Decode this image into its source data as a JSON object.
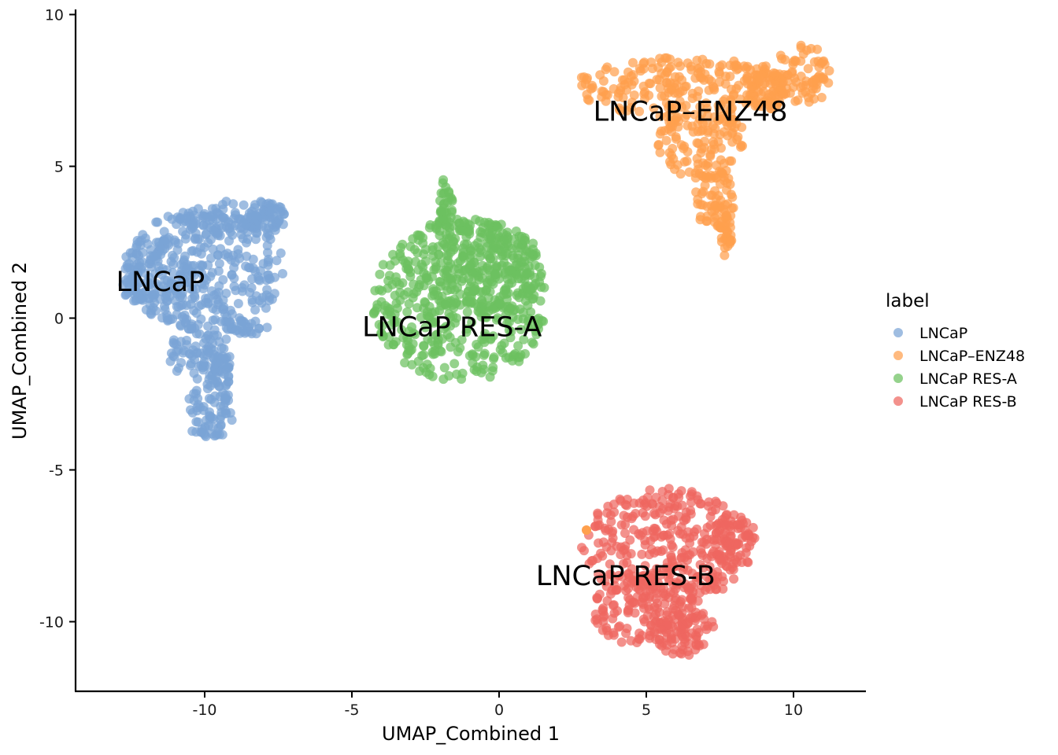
{
  "chart_data": {
    "type": "scatter",
    "title": "",
    "xlabel": "UMAP_Combined 1",
    "ylabel": "UMAP_Combined 2",
    "xlim": [
      -14.5,
      12.3
    ],
    "ylim": [
      -12.3,
      10.1
    ],
    "xticks": [
      -10,
      -5,
      0,
      5,
      10
    ],
    "yticks": [
      -10,
      -5,
      0,
      5,
      10
    ],
    "grid": false,
    "legend": {
      "title": "label",
      "position": "right"
    },
    "series": [
      {
        "name": "LNCaP",
        "color": "#7aa3d6",
        "label_text": "LNCaP",
        "label_position": [
          -11.5,
          0.9
        ],
        "regions": [
          {
            "cx": -10.0,
            "cy": 1.6,
            "rx": 2.7,
            "ry": 2.0
          },
          {
            "cx": -9.0,
            "cy": 3.3,
            "rx": 1.8,
            "ry": 0.6
          },
          {
            "cx": -7.9,
            "cy": 3.3,
            "rx": 0.7,
            "ry": 0.6
          },
          {
            "cx": -11.7,
            "cy": 1.4,
            "rx": 1.2,
            "ry": 1.2
          },
          {
            "cx": -10.2,
            "cy": -1.1,
            "rx": 1.1,
            "ry": 0.9
          },
          {
            "cx": -9.7,
            "cy": -1.8,
            "rx": 0.6,
            "ry": 0.8
          },
          {
            "cx": -9.8,
            "cy": -3.1,
            "rx": 0.9,
            "ry": 0.9
          },
          {
            "cx": -8.6,
            "cy": -0.3,
            "rx": 0.8,
            "ry": 0.25
          }
        ]
      },
      {
        "name": "LNCaP–ENZ48",
        "color": "#ffa04d",
        "label_text": "LNCaP–ENZ48",
        "label_position": [
          6.5,
          6.5
        ],
        "regions": [
          {
            "cx": 6.2,
            "cy": 7.6,
            "rx": 3.6,
            "ry": 1.0
          },
          {
            "cx": 6.9,
            "cy": 5.8,
            "rx": 1.5,
            "ry": 1.2
          },
          {
            "cx": 7.3,
            "cy": 3.9,
            "rx": 0.7,
            "ry": 1.0
          },
          {
            "cx": 7.7,
            "cy": 2.7,
            "rx": 0.2,
            "ry": 0.7
          },
          {
            "cx": 10.3,
            "cy": 8.0,
            "rx": 1.0,
            "ry": 1.0
          },
          {
            "cx": 9.0,
            "cy": 7.6,
            "rx": 0.7,
            "ry": 0.8
          }
        ]
      },
      {
        "name": "LNCaP RES-A",
        "color": "#6cc15f",
        "label_text": "LNCaP RES-A",
        "label_position": [
          -1.6,
          -0.6
        ],
        "regions": [
          {
            "cx": -1.3,
            "cy": 0.6,
            "rx": 3.0,
            "ry": 2.7
          },
          {
            "cx": -0.5,
            "cy": 1.6,
            "rx": 2.0,
            "ry": 1.6
          },
          {
            "cx": -1.8,
            "cy": 3.9,
            "rx": 0.25,
            "ry": 0.8
          }
        ]
      },
      {
        "name": "LNCaP RES-B",
        "color": "#ee6760",
        "label_text": "LNCaP RES-B",
        "label_position": [
          4.3,
          -8.8
        ],
        "regions": [
          {
            "cx": 5.7,
            "cy": -7.5,
            "rx": 2.9,
            "ry": 1.9
          },
          {
            "cx": 5.0,
            "cy": -9.6,
            "rx": 1.8,
            "ry": 1.3
          },
          {
            "cx": 6.2,
            "cy": -10.3,
            "rx": 1.1,
            "ry": 0.9
          },
          {
            "cx": 8.0,
            "cy": -7.3,
            "rx": 0.7,
            "ry": 1.0
          }
        ]
      }
    ]
  }
}
